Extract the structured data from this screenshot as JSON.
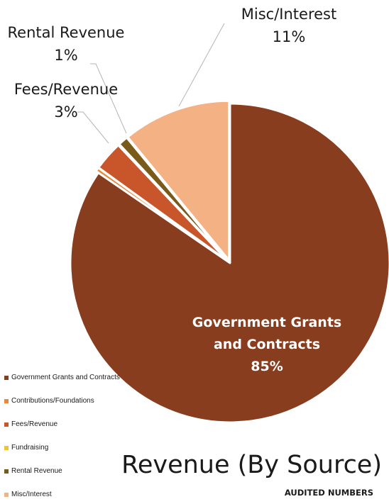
{
  "chart_data": {
    "type": "pie",
    "title": "Revenue (By Source)",
    "subtitle": "AUDITED NUMBERS",
    "slices": [
      {
        "name": "Government Grants and Contracts",
        "value": 85,
        "label": "85%",
        "color": "#873d1e"
      },
      {
        "name": "Contributions/Foundations",
        "value": 0.4,
        "label": "",
        "color": "#e8893c"
      },
      {
        "name": "Fees/Revenue",
        "value": 3,
        "label": "3%",
        "color": "#c8562a"
      },
      {
        "name": "Fundraising",
        "value": 0.1,
        "label": "",
        "color": "#f1c232"
      },
      {
        "name": "Rental Revenue",
        "value": 1,
        "label": "1%",
        "color": "#7a5a1a"
      },
      {
        "name": "Misc/Interest",
        "value": 11,
        "label": "11%",
        "color": "#f4b183"
      }
    ],
    "legend_position": "bottom-left",
    "callouts": {
      "misc": {
        "name": "Misc/Interest",
        "pct": "11%"
      },
      "rental": {
        "name": "Rental Revenue",
        "pct": "1%"
      },
      "fees": {
        "name": "Fees/Revenue",
        "pct": "3%"
      },
      "gov": {
        "name_line1": "Government Grants",
        "name_line2": "and Contracts",
        "pct": "85%"
      }
    },
    "legend": [
      {
        "label": "Government Grants and Contracts",
        "color": "#873d1e"
      },
      {
        "label": "Contributions/Foundations",
        "color": "#e8893c"
      },
      {
        "label": "Fees/Revenue",
        "color": "#c8562a"
      },
      {
        "label": "Fundraising",
        "color": "#f1c232"
      },
      {
        "label": "Rental Revenue",
        "color": "#7a5a1a"
      },
      {
        "label": "Misc/Interest",
        "color": "#f4b183"
      }
    ]
  }
}
